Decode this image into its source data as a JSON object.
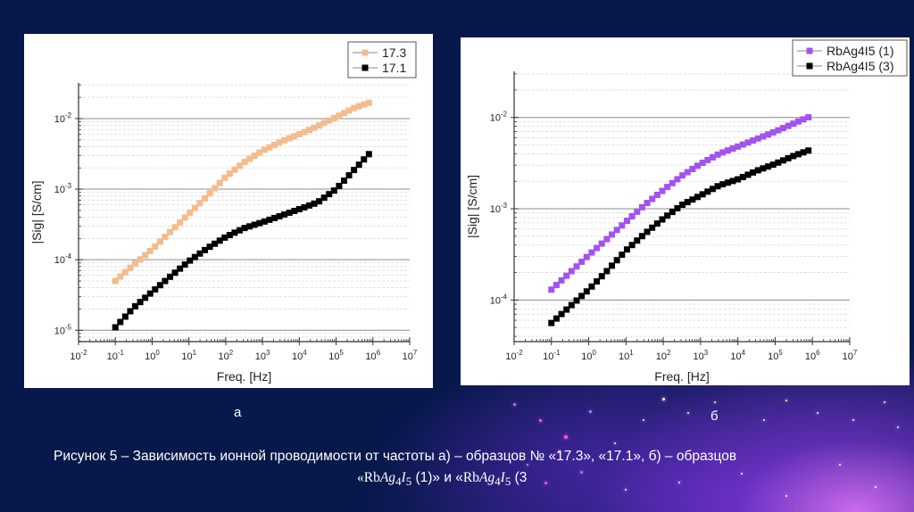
{
  "chart_data": [
    {
      "id": "a",
      "type": "scatter",
      "title": "",
      "xlabel": "Freq. [Hz]",
      "ylabel": "|Sig| [S/cm]",
      "xscale": "log",
      "yscale": "log",
      "xlim": [
        0.01,
        10000000
      ],
      "ylim": [
        6.9e-06,
        0.032
      ],
      "xticks": [
        "10-2",
        "10-1",
        "100",
        "101",
        "102",
        "103",
        "104",
        "105",
        "106",
        "107"
      ],
      "yticks": [
        "10-5",
        "10-4",
        "10-3",
        "10-2"
      ],
      "grid": true,
      "legend_position": "top-right",
      "series": [
        {
          "name": "17.3",
          "color": "#f4bb8c",
          "x": [
            0.1,
            0.316,
            1,
            3.16,
            10,
            31.6,
            100,
            316,
            1000,
            3162,
            10000,
            31623,
            100000,
            316228,
            1000000
          ],
          "y": [
            5e-05,
            8.5e-05,
            0.00014,
            0.00025,
            0.00045,
            0.0008,
            0.0015,
            0.0024,
            0.0035,
            0.0047,
            0.006,
            0.0078,
            0.0105,
            0.0142,
            0.0175
          ]
        },
        {
          "name": "17.1",
          "color": "#000000",
          "x": [
            0.1,
            0.316,
            1,
            3.16,
            10,
            31.6,
            100,
            316,
            1000,
            3162,
            10000,
            31623,
            100000,
            316228,
            1000000
          ],
          "y": [
            1.1e-05,
            2.1e-05,
            3.5e-05,
            5.8e-05,
            9.5e-05,
            0.000145,
            0.00021,
            0.00028,
            0.00034,
            0.00042,
            0.00052,
            0.00065,
            0.001,
            0.0019,
            0.0036
          ]
        }
      ]
    },
    {
      "id": "b",
      "type": "scatter",
      "title": "",
      "xlabel": "Freq. [Hz]",
      "ylabel": "|Sig| [S/cm]",
      "xscale": "log",
      "yscale": "log",
      "xlim": [
        0.01,
        10000000
      ],
      "ylim": [
        3.5e-05,
        0.032
      ],
      "xticks": [
        "10-2",
        "10-1",
        "100",
        "101",
        "102",
        "103",
        "104",
        "105",
        "106",
        "107"
      ],
      "yticks": [
        "10-4",
        "10-3",
        "10-2"
      ],
      "grid": true,
      "legend_position": "top-right",
      "series": [
        {
          "name": "RbAg4I5 (1)",
          "color": "#a352f0",
          "x": [
            0.1,
            0.316,
            1,
            3.16,
            10,
            31.6,
            100,
            316,
            1000,
            3162,
            10000,
            31623,
            100000,
            316228,
            1000000
          ],
          "y": [
            0.00013,
            0.0002,
            0.00031,
            0.00047,
            0.00072,
            0.0011,
            0.0016,
            0.0023,
            0.0031,
            0.004,
            0.0048,
            0.0058,
            0.007,
            0.0086,
            0.0105
          ]
        },
        {
          "name": "RbAg4I5 (3)",
          "color": "#000000",
          "x": [
            0.1,
            0.316,
            1,
            3.16,
            10,
            31.6,
            100,
            316,
            1000,
            3162,
            10000,
            31623,
            100000,
            316228,
            1000000
          ],
          "y": [
            5.6e-05,
            8.5e-05,
            0.00013,
            0.00021,
            0.00035,
            0.00053,
            0.00078,
            0.0011,
            0.0014,
            0.0018,
            0.0021,
            0.0026,
            0.0031,
            0.0038,
            0.0045
          ]
        }
      ]
    }
  ],
  "labels": {
    "sub_a": "а",
    "sub_b": "б"
  },
  "caption": {
    "line1": "Рисунок 5 – Зависимость ионной проводимости от частоты а) – образцов № «17.3»,  «17.1», б) – образцов",
    "line2_open": "«",
    "formula_rb": "Rb",
    "formula_ag": "Ag",
    "formula_ag_sub": "4",
    "formula_i": "I",
    "formula_i_sub": "5",
    "line2_mid": " (1)» и «",
    "line2_end": " (3"
  }
}
